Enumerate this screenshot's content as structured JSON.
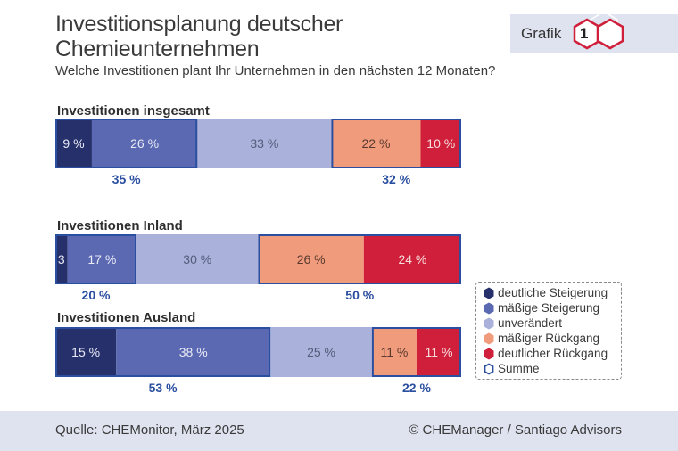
{
  "header": {
    "title_line1": "Investitionsplanung deutscher",
    "title_line2": "Chemieunternehmen",
    "subtitle": "Welche Investitionen plant Ihr Unternehmen in den nächsten 12 Monaten?",
    "badge_label": "Grafik",
    "badge_number": "1"
  },
  "footer": {
    "source": "Quelle: CHEMonitor, März 2025",
    "copyright": "© CHEManager / Santiago Advisors"
  },
  "colors": {
    "deutliche_steigerung": "#26306b",
    "maessige_steigerung": "#5b68b2",
    "unveraendert": "#aab2dc",
    "maessiger_rueckgang": "#f09b7c",
    "deutlicher_rueckgang": "#cf1f3a",
    "summe": "#2a4ea0"
  },
  "legend": {
    "items": [
      {
        "label": "deutliche Steigerung",
        "color": "#26306b",
        "shape": "hexagon-filled"
      },
      {
        "label": "mäßige Steigerung",
        "color": "#5b68b2",
        "shape": "hexagon-filled"
      },
      {
        "label": "unverändert",
        "color": "#aab2dc",
        "shape": "hexagon-filled"
      },
      {
        "label": "mäßiger Rückgang",
        "color": "#f09b7c",
        "shape": "hexagon-filled"
      },
      {
        "label": "deutlicher Rückgang",
        "color": "#cf1f3a",
        "shape": "hexagon-filled"
      },
      {
        "label": "Summe",
        "color": "#2a4ea0",
        "shape": "hexagon-outline"
      }
    ]
  },
  "chart_data": {
    "type": "bar",
    "orientation": "horizontal",
    "stacked": true,
    "series_names": [
      "deutliche Steigerung",
      "mäßige Steigerung",
      "unverändert",
      "mäßiger Rückgang",
      "deutlicher Rückgang"
    ],
    "groups": [
      {
        "title": "Investitionen insgesamt",
        "values": [
          9,
          26,
          33,
          22,
          10
        ],
        "labels": [
          "9 %",
          "26 %",
          "33 %",
          "22 %",
          "10 %"
        ],
        "sum_increase": "35 %",
        "sum_decrease": "32 %"
      },
      {
        "title": "Investitionen Inland",
        "values": [
          3,
          17,
          30,
          26,
          24
        ],
        "labels": [
          "3",
          "17 %",
          "30 %",
          "26 %",
          "24 %"
        ],
        "sum_increase": "20 %",
        "sum_decrease": "50 %"
      },
      {
        "title": "Investitionen Ausland",
        "values": [
          15,
          38,
          25,
          11,
          11
        ],
        "labels": [
          "15 %",
          "38 %",
          "25 %",
          "11 %",
          "11 %"
        ],
        "sum_increase": "53 %",
        "sum_decrease": "22 %"
      }
    ]
  }
}
